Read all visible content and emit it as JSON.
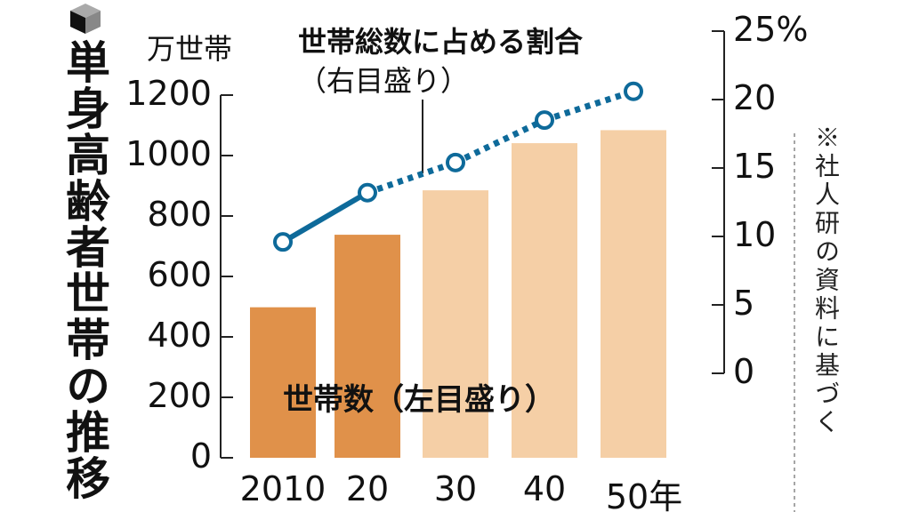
{
  "title": "単身高齢者世帯の推移",
  "note": "※社人研の資料に基づく",
  "colors": {
    "actual": "#e0914a",
    "projected": "#f5cfa6",
    "line": "#0e6a9a"
  },
  "chart_data": {
    "type": "bar+line",
    "title": "単身高齢者世帯の推移",
    "categories": [
      "2010",
      "20",
      "30",
      "40",
      "50年"
    ],
    "projected_from_index": 2,
    "bars": {
      "name": "世帯数（左目盛り）",
      "unit": "万世帯",
      "values": [
        498,
        738,
        885,
        1041,
        1084
      ],
      "ylim": [
        0,
        1200
      ],
      "ticks": [
        0,
        200,
        400,
        600,
        800,
        1000,
        1200
      ]
    },
    "line": {
      "name": "世帯総数に占める割合",
      "sub": "（右目盛り）",
      "unit": "%",
      "values": [
        9.6,
        13.2,
        15.4,
        18.5,
        20.6
      ],
      "ylim": [
        0,
        25
      ],
      "ticks": [
        "0",
        "5",
        "10",
        "15",
        "20",
        "25%"
      ],
      "dotted_from_index": 1
    },
    "left_ylabel": "万世帯"
  }
}
